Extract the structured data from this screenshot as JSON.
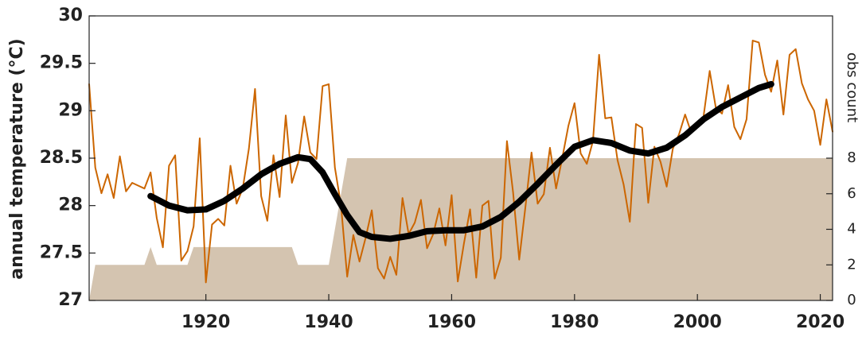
{
  "chart_data": {
    "type": "line",
    "ylabel": "annual temperature (°C)",
    "y2label": "obs count",
    "xlim": [
      1901,
      2022
    ],
    "xticks": [
      1920,
      1940,
      1960,
      1980,
      2000,
      2020
    ],
    "ylim": [
      27,
      30
    ],
    "yticks": [
      27,
      27.5,
      28,
      28.5,
      29,
      29.5,
      30
    ],
    "y2lim": [
      0,
      16
    ],
    "y2ticks": [
      0,
      2,
      4,
      6,
      8
    ],
    "x": [
      1901,
      1902,
      1903,
      1904,
      1905,
      1906,
      1907,
      1908,
      1909,
      1910,
      1911,
      1912,
      1913,
      1914,
      1915,
      1916,
      1917,
      1918,
      1919,
      1920,
      1921,
      1922,
      1923,
      1924,
      1925,
      1926,
      1927,
      1928,
      1929,
      1930,
      1931,
      1932,
      1933,
      1934,
      1935,
      1936,
      1937,
      1938,
      1939,
      1940,
      1941,
      1942,
      1943,
      1944,
      1945,
      1946,
      1947,
      1948,
      1949,
      1950,
      1951,
      1952,
      1953,
      1954,
      1955,
      1956,
      1957,
      1958,
      1959,
      1960,
      1961,
      1962,
      1963,
      1964,
      1965,
      1966,
      1967,
      1968,
      1969,
      1970,
      1971,
      1972,
      1973,
      1974,
      1975,
      1976,
      1977,
      1978,
      1979,
      1980,
      1981,
      1982,
      1983,
      1984,
      1985,
      1986,
      1987,
      1988,
      1989,
      1990,
      1991,
      1992,
      1993,
      1994,
      1995,
      1996,
      1997,
      1998,
      1999,
      2000,
      2001,
      2002,
      2003,
      2004,
      2005,
      2006,
      2007,
      2008,
      2009,
      2010,
      2011,
      2012,
      2013,
      2014,
      2015,
      2016,
      2017,
      2018,
      2019,
      2020,
      2021,
      2022
    ],
    "series": [
      {
        "type": "area",
        "axis": "y2",
        "color": "#d4c4b0",
        "values": [
          0,
          2,
          2,
          2,
          2,
          2,
          2,
          2,
          2,
          2,
          3,
          2,
          2,
          2,
          2,
          2,
          2,
          3,
          3,
          3,
          3,
          3,
          3,
          3,
          3,
          3,
          3,
          3,
          3,
          3,
          3,
          3,
          3,
          3,
          2,
          2,
          2,
          2,
          2,
          2,
          4,
          6,
          8,
          8,
          8,
          8,
          8,
          8,
          8,
          8,
          8,
          8,
          8,
          8,
          8,
          8,
          8,
          8,
          8,
          8,
          8,
          8,
          8,
          8,
          8,
          8,
          8,
          8,
          8,
          8,
          8,
          8,
          8,
          8,
          8,
          8,
          8,
          8,
          8,
          8,
          8,
          8,
          8,
          8,
          8,
          8,
          8,
          8,
          8,
          8,
          8,
          8,
          8,
          8,
          8,
          8,
          8,
          8,
          8,
          8,
          8,
          8,
          8,
          8,
          8,
          8,
          8,
          8,
          8,
          8,
          8,
          8,
          8,
          8,
          8,
          8,
          8,
          8,
          8,
          8,
          8,
          8
        ]
      },
      {
        "type": "line",
        "color": "#cc6600",
        "values": [
          29.28,
          28.4,
          28.13,
          28.33,
          28.08,
          28.52,
          28.15,
          28.24,
          28.21,
          28.18,
          28.35,
          27.87,
          27.56,
          28.42,
          28.53,
          27.42,
          27.52,
          27.78,
          28.71,
          27.19,
          27.8,
          27.86,
          27.79,
          28.42,
          28.02,
          28.18,
          28.6,
          29.23,
          28.1,
          27.84,
          28.53,
          28.09,
          28.95,
          28.24,
          28.45,
          28.94,
          28.56,
          28.49,
          29.26,
          29.28,
          28.4,
          28.0,
          27.25,
          27.69,
          27.41,
          27.66,
          27.95,
          27.34,
          27.23,
          27.46,
          27.27,
          28.08,
          27.7,
          27.82,
          28.06,
          27.55,
          27.7,
          27.97,
          27.58,
          28.11,
          27.2,
          27.6,
          27.96,
          27.24,
          28.0,
          28.05,
          27.23,
          27.45,
          28.68,
          28.14,
          27.43,
          27.98,
          28.56,
          28.02,
          28.12,
          28.61,
          28.18,
          28.5,
          28.84,
          29.08,
          28.55,
          28.44,
          28.68,
          29.59,
          28.92,
          28.93,
          28.48,
          28.22,
          27.83,
          28.86,
          28.82,
          28.03,
          28.62,
          28.46,
          28.2,
          28.6,
          28.75,
          28.96,
          28.77,
          28.87,
          28.94,
          29.42,
          29.03,
          28.97,
          29.27,
          28.83,
          28.7,
          28.91,
          29.74,
          29.72,
          29.38,
          29.2,
          29.53,
          28.96,
          29.59,
          29.65,
          29.29,
          29.12,
          29.0,
          28.64,
          29.12,
          28.78
        ]
      },
      {
        "type": "smooth",
        "color": "#000000",
        "x": [
          1911,
          1914,
          1917,
          1920,
          1923,
          1926,
          1929,
          1932,
          1935,
          1937,
          1939,
          1941,
          1943,
          1945,
          1947,
          1950,
          1953,
          1956,
          1959,
          1962,
          1965,
          1968,
          1971,
          1974,
          1977,
          1980,
          1983,
          1986,
          1989,
          1992,
          1995,
          1998,
          2001,
          2004,
          2007,
          2010,
          2012
        ],
        "values": [
          28.1,
          28.0,
          27.95,
          27.96,
          28.05,
          28.18,
          28.33,
          28.44,
          28.51,
          28.49,
          28.35,
          28.12,
          27.9,
          27.72,
          27.67,
          27.65,
          27.68,
          27.73,
          27.74,
          27.74,
          27.78,
          27.88,
          28.04,
          28.23,
          28.43,
          28.62,
          28.69,
          28.66,
          28.58,
          28.55,
          28.61,
          28.74,
          28.91,
          29.04,
          29.14,
          29.24,
          29.28
        ]
      }
    ]
  }
}
